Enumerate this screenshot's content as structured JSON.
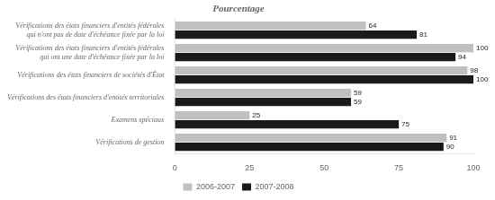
{
  "chart_data": {
    "type": "bar",
    "orientation": "horizontal",
    "title": "Pourcentage",
    "categories": [
      "Vérifications des états financiers d'entités fédérales\nqui n'ont pas de date d'échéance fixée par la loi",
      "Vérifications des états financiers d'entités fédérales\nqui ont une date d'échéance fixée par la loi",
      "Vérifications des états financiers de sociétés d'État",
      "Vérifications des états financiers d'entités territoriales",
      "Examens spéciaux",
      "Vérifications de gestion"
    ],
    "series": [
      {
        "name": "2006-2007",
        "color": "#c0c0c0",
        "values": [
          64,
          100,
          98,
          59,
          25,
          91
        ]
      },
      {
        "name": "2007-2008",
        "color": "#1a1a1a",
        "values": [
          81,
          94,
          100,
          59,
          75,
          90
        ]
      }
    ],
    "xlim": [
      0,
      100
    ],
    "xticks": [
      0,
      25,
      50,
      75,
      100
    ],
    "grid": false,
    "legend": "bottom",
    "data_labels": true
  }
}
